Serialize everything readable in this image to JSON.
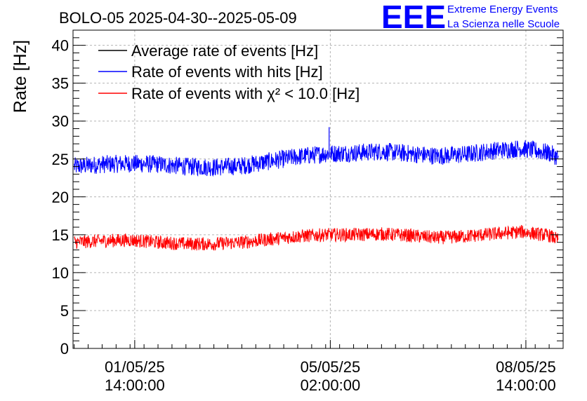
{
  "header": {
    "title": "BOLO-05 2025-04-30--2025-05-09",
    "logo_text": "EEE",
    "logo_line1": "Extreme Energy Events",
    "logo_line2": "La Scienza nelle Scuole",
    "logo_color": "#0000ff"
  },
  "chart_data": {
    "type": "line",
    "ylabel": "Rate [Hz]",
    "ylim": [
      0,
      42
    ],
    "yticks": [
      0,
      5,
      10,
      15,
      20,
      25,
      30,
      35,
      40
    ],
    "x_range": [
      "2025-04-30T11:30",
      "2025-05-09T06:00"
    ],
    "xticks": [
      {
        "date": "01/05/25",
        "time": "14:00:00"
      },
      {
        "date": "05/05/25",
        "time": "02:00:00"
      },
      {
        "date": "08/05/25",
        "time": "14:00:00"
      }
    ],
    "grid": true,
    "legend_position": "top-left",
    "series": [
      {
        "name": "Average rate of events [Hz]",
        "color": "#000000",
        "values": []
      },
      {
        "name": "Rate of events with hits [Hz]",
        "color": "#0000ff",
        "x": [
          "2025-04-30T12:00",
          "2025-05-01T00:00",
          "2025-05-01T12:00",
          "2025-05-02T00:00",
          "2025-05-02T12:00",
          "2025-05-03T00:00",
          "2025-05-03T12:00",
          "2025-05-04T00:00",
          "2025-05-04T12:00",
          "2025-05-05T00:00",
          "2025-05-05T12:00",
          "2025-05-06T00:00",
          "2025-05-06T12:00",
          "2025-05-07T00:00",
          "2025-05-07T12:00",
          "2025-05-08T00:00",
          "2025-05-08T12:00",
          "2025-05-09T00:00",
          "2025-05-09T04:00"
        ],
        "values": [
          24.0,
          24.3,
          24.4,
          24.3,
          24.0,
          23.9,
          24.1,
          24.7,
          25.3,
          25.7,
          25.8,
          26.0,
          25.7,
          25.4,
          25.6,
          26.1,
          26.4,
          25.8,
          25.2
        ],
        "spread": 1.2,
        "spikes": [
          {
            "x": "2025-05-05T01:30",
            "value": 29.2
          }
        ]
      },
      {
        "name": "Rate of events with χ² < 10.0 [Hz]",
        "color": "#ff0000",
        "x": [
          "2025-04-30T12:00",
          "2025-05-01T00:00",
          "2025-05-01T12:00",
          "2025-05-02T00:00",
          "2025-05-02T12:00",
          "2025-05-03T00:00",
          "2025-05-03T12:00",
          "2025-05-04T00:00",
          "2025-05-04T12:00",
          "2025-05-05T00:00",
          "2025-05-05T12:00",
          "2025-05-06T00:00",
          "2025-05-06T12:00",
          "2025-05-07T00:00",
          "2025-05-07T12:00",
          "2025-05-08T00:00",
          "2025-05-08T12:00",
          "2025-05-09T00:00",
          "2025-05-09T04:00"
        ],
        "values": [
          14.0,
          14.2,
          14.3,
          14.0,
          13.8,
          13.8,
          14.0,
          14.4,
          14.8,
          15.0,
          15.0,
          15.1,
          14.9,
          14.6,
          14.8,
          15.1,
          15.4,
          14.9,
          14.3
        ],
        "spread": 0.9,
        "spikes": []
      }
    ]
  }
}
